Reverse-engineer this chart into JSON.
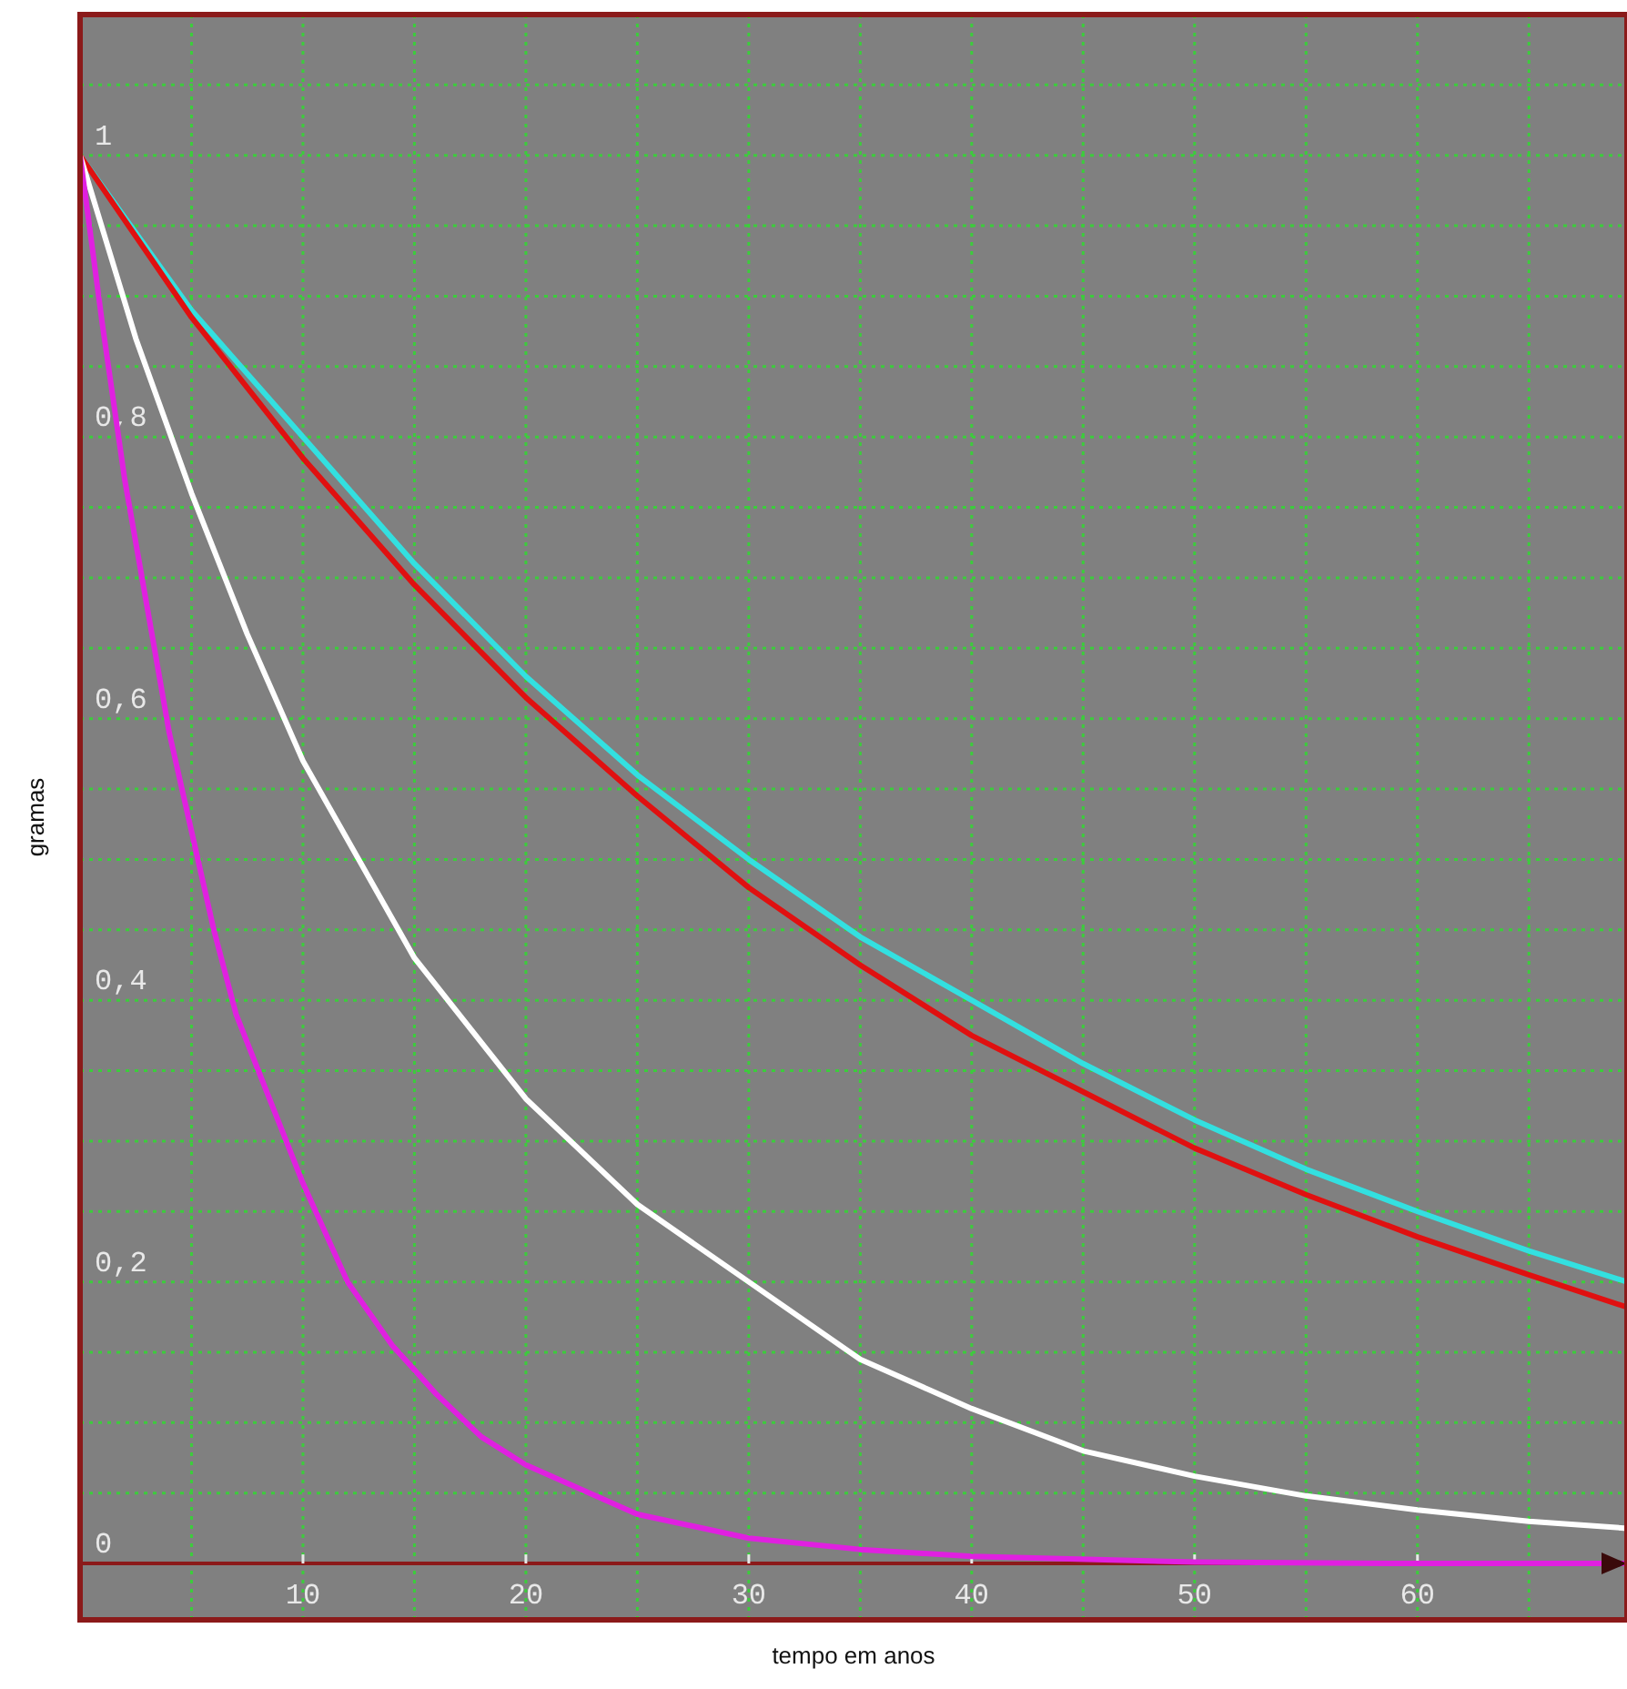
{
  "chart_data": {
    "type": "line",
    "xlabel": "tempo em anos",
    "ylabel": "gramas",
    "xlim": [
      0,
      69.4
    ],
    "ylim": [
      -0.04,
      1.1
    ],
    "xticks": [
      {
        "value": 5,
        "label": null
      },
      10,
      {
        "value": 15,
        "label": null
      },
      20,
      {
        "value": 25,
        "label": null
      },
      30,
      {
        "value": 35,
        "label": null
      },
      40,
      {
        "value": 45,
        "label": null
      },
      50,
      {
        "value": 55,
        "label": null
      },
      60,
      {
        "value": 65,
        "label": null
      }
    ],
    "yticks": [
      {
        "value": 0,
        "label": "0"
      },
      {
        "value": 0.05,
        "label": null
      },
      {
        "value": 0.1,
        "label": null
      },
      {
        "value": 0.15,
        "label": null
      },
      {
        "value": 0.2,
        "label": "0,2"
      },
      {
        "value": 0.25,
        "label": null
      },
      {
        "value": 0.3,
        "label": null
      },
      {
        "value": 0.35,
        "label": null
      },
      {
        "value": 0.4,
        "label": "0,4"
      },
      {
        "value": 0.45,
        "label": null
      },
      {
        "value": 0.5,
        "label": null
      },
      {
        "value": 0.55,
        "label": null
      },
      {
        "value": 0.6,
        "label": "0,6"
      },
      {
        "value": 0.65,
        "label": null
      },
      {
        "value": 0.7,
        "label": null
      },
      {
        "value": 0.75,
        "label": null
      },
      {
        "value": 0.8,
        "label": "0,8"
      },
      {
        "value": 0.85,
        "label": null
      },
      {
        "value": 0.9,
        "label": null
      },
      {
        "value": 0.95,
        "label": null
      },
      {
        "value": 1,
        "label": "1"
      },
      {
        "value": 1.05,
        "label": null
      }
    ],
    "grid": true,
    "marker": "none",
    "line_style": "solid",
    "ref_lines": [
      {
        "axis": "y",
        "value": 0,
        "color": "#8b1a1a"
      }
    ],
    "series": [
      {
        "color": "#33e0e0",
        "x": [
          0,
          5,
          10,
          15,
          20,
          25,
          30,
          35,
          40,
          45,
          50,
          55,
          60,
          65,
          69.4
        ],
        "values": [
          1,
          0.89,
          0.8,
          0.71,
          0.63,
          0.56,
          0.5,
          0.445,
          0.4,
          0.355,
          0.315,
          0.28,
          0.25,
          0.222,
          0.2
        ]
      },
      {
        "color": "#e01010",
        "x": [
          0,
          5,
          10,
          15,
          20,
          25,
          30,
          35,
          40,
          45,
          50,
          55,
          60,
          65,
          69.4
        ],
        "values": [
          1,
          0.885,
          0.785,
          0.695,
          0.615,
          0.545,
          0.48,
          0.425,
          0.375,
          0.335,
          0.295,
          0.262,
          0.232,
          0.205,
          0.182
        ]
      },
      {
        "color": "#ffffff",
        "x": [
          0,
          2.5,
          5,
          7.5,
          10,
          15,
          20,
          25,
          30,
          35,
          40,
          45,
          50,
          55,
          60,
          65,
          69.4
        ],
        "values": [
          1,
          0.87,
          0.76,
          0.66,
          0.57,
          0.43,
          0.33,
          0.255,
          0.2,
          0.145,
          0.11,
          0.08,
          0.062,
          0.048,
          0.038,
          0.03,
          0.025
        ]
      },
      {
        "color": "#e020e0",
        "x": [
          0,
          1,
          2,
          3,
          4,
          5,
          6,
          7,
          8,
          10,
          12,
          14,
          16,
          18,
          20,
          25,
          30,
          35,
          40,
          50,
          60,
          69.4
        ],
        "values": [
          1,
          0.88,
          0.77,
          0.68,
          0.59,
          0.52,
          0.45,
          0.39,
          0.35,
          0.27,
          0.2,
          0.155,
          0.12,
          0.09,
          0.07,
          0.035,
          0.018,
          0.01,
          0.005,
          0.001,
          0,
          0
        ]
      }
    ]
  }
}
